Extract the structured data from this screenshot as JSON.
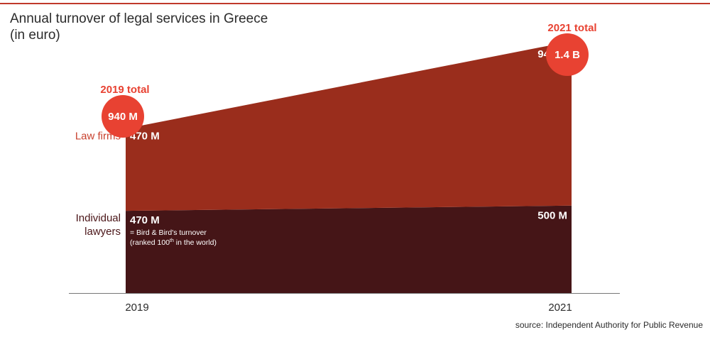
{
  "title": {
    "line1": "Annual turnover of legal services in Greece",
    "line2": "(in euro)"
  },
  "source": "source: Independent Authority for Public Revenue",
  "colors": {
    "rule": "#c0392b",
    "law_firms": "#9a2d1c",
    "individual_lawyers": "#451517",
    "total_circle": "#e84232",
    "label_red": "#c8402d",
    "label_dark": "#4a1518",
    "baseline": "#777777"
  },
  "chart_data": {
    "type": "area",
    "stacked": true,
    "x": [
      "2019",
      "2021"
    ],
    "series": [
      {
        "name": "Individual lawyers",
        "values": [
          470,
          500
        ],
        "value_labels": [
          "470 M",
          "500 M"
        ]
      },
      {
        "name": "Law firms",
        "values": [
          470,
          940
        ],
        "value_labels": [
          "470 M",
          "940 M"
        ]
      }
    ],
    "totals": [
      {
        "label": "2019 total",
        "value": "940 M"
      },
      {
        "label": "2021 total",
        "value": "1.4 B"
      }
    ],
    "annotation": {
      "line1": "= Bird & Bird's turnover",
      "line2_pre": "(ranked 100",
      "line2_sup": "th",
      "line2_post": " in the world)"
    },
    "unit": "M euro",
    "ylim": [
      0,
      1440
    ],
    "grid": false,
    "legend": "none"
  }
}
